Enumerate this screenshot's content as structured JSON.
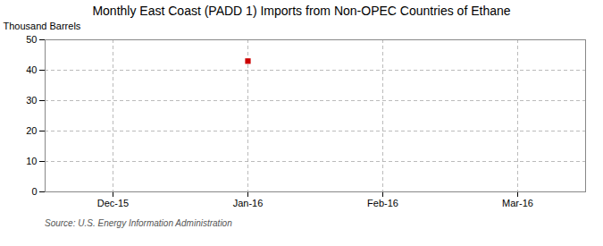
{
  "chart_data": {
    "type": "scatter",
    "title": "Monthly East Coast (PADD 1) Imports from Non-OPEC Countries of Ethane",
    "ylabel": "Thousand Barrels",
    "source": "Source: U.S. Energy Information Administration",
    "categories": [
      "Dec-15",
      "Jan-16",
      "Feb-16",
      "Mar-16"
    ],
    "values": [
      null,
      43,
      null,
      null
    ],
    "color": "#cc0000",
    "marker": "square",
    "ylim": [
      0,
      50
    ],
    "yticks": [
      0,
      10,
      20,
      30,
      40,
      50
    ],
    "grid": true
  }
}
